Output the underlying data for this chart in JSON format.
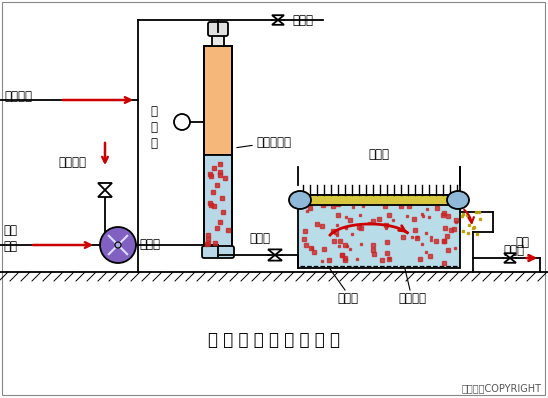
{
  "title": "全 溶 气 气 浮 工 艺 流 程",
  "copyright": "东方仿真COPYRIGHT",
  "bg_color": "#ffffff",
  "line_color": "#000000",
  "tank_fill": "#b8dce8",
  "vessel_top_fill": "#f5b87a",
  "vessel_bot_fill": "#b8d8e8",
  "pump_fill": "#8060c0",
  "roller_fill": "#90b8d8",
  "red": "#cc0000",
  "bubble_color": "#cc2222",
  "yellow_strip": "#d8c840",
  "labels": {
    "air_in": "空气进入",
    "chem": "化学药剂",
    "raw_in": "原水\n进入",
    "pressure_gauge": "压\n力\n表",
    "vessel": "压力溶气罐",
    "release_valve": "放气阀",
    "pressure_pump": "加压泵",
    "reduce_valve": "减压阀",
    "scraper": "刮渣机",
    "flotation_right": "气浮池",
    "flotation_bottom": "气浮池",
    "collection": "集水系统",
    "outlet": "出水"
  }
}
